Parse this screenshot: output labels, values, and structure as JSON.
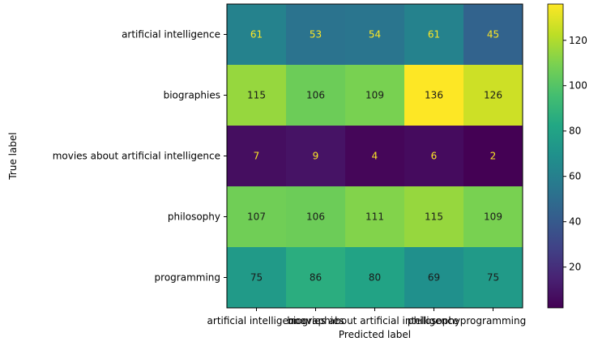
{
  "chart_data": {
    "type": "heatmap",
    "xlabel": "Predicted label",
    "ylabel": "True label",
    "x_categories": [
      "artificial intelligence",
      "biographies",
      "movies about artificial intelligence",
      "philosophy",
      "programming"
    ],
    "y_categories": [
      "artificial intelligence",
      "biographies",
      "movies about artificial intelligence",
      "philosophy",
      "programming"
    ],
    "values": [
      [
        61,
        53,
        54,
        61,
        45
      ],
      [
        115,
        106,
        109,
        136,
        126
      ],
      [
        7,
        9,
        4,
        6,
        2
      ],
      [
        107,
        106,
        111,
        115,
        109
      ],
      [
        75,
        86,
        80,
        69,
        75
      ]
    ],
    "colormap": "viridis",
    "colorbar": {
      "min": 2,
      "max": 136,
      "ticks": [
        20,
        40,
        60,
        80,
        100,
        120
      ]
    }
  }
}
